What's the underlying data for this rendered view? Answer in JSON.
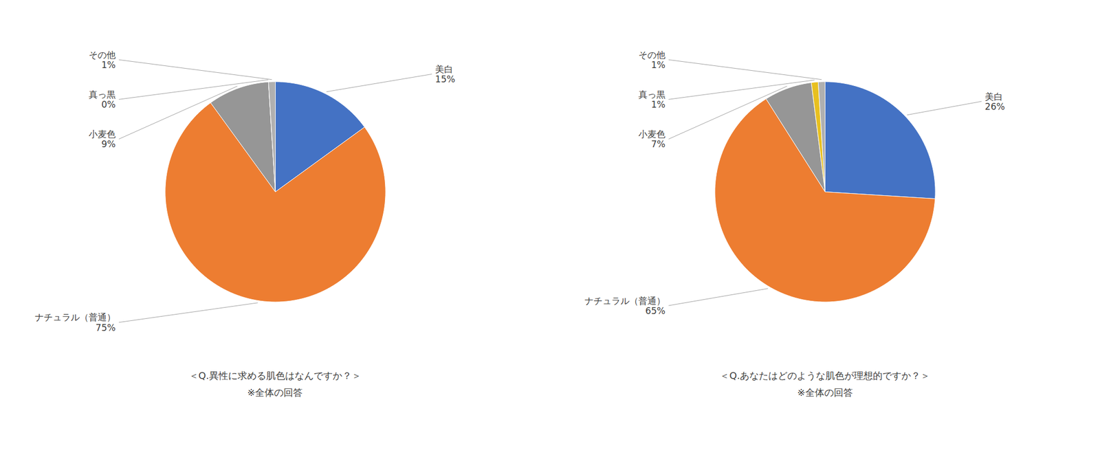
{
  "chart_data": [
    {
      "type": "pie",
      "title": "＜Q.異性に求める肌色はなんですか？＞",
      "subtitle": "※全体の回答",
      "categories": [
        "美白",
        "ナチュラル（普通）",
        "小麦色",
        "真っ黒",
        "その他"
      ],
      "values": [
        15,
        75,
        9,
        0,
        1
      ],
      "value_labels": [
        "15%",
        "75%",
        "9%",
        "0%",
        "1%"
      ],
      "colors": [
        "#4472C4",
        "#ED7D31",
        "#969696",
        "#969696",
        "#B0B0B0"
      ],
      "data_labels": true
    },
    {
      "type": "pie",
      "title": "＜Q.あなたはどのような肌色が理想的ですか？＞",
      "subtitle": "※全体の回答",
      "categories": [
        "美白",
        "ナチュラル（普通）",
        "小麦色",
        "真っ黒",
        "その他"
      ],
      "values": [
        26,
        65,
        7,
        1,
        1
      ],
      "value_labels": [
        "26%",
        "65%",
        "7%",
        "1%",
        "1%"
      ],
      "colors": [
        "#4472C4",
        "#ED7D31",
        "#969696",
        "#E8C020",
        "#B0B0B0"
      ],
      "data_labels": true
    }
  ]
}
